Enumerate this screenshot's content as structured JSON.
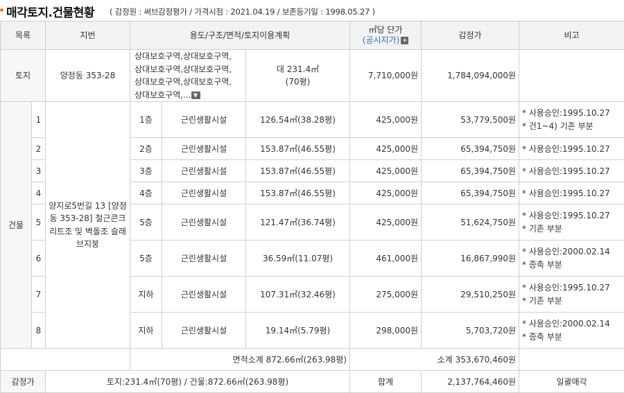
{
  "header": {
    "title": "매각토지.건물현황",
    "subtitle": "( 감정원 : 써브감정평가 / 가격시점 : 2021.04.19 / 보존등기일 : 1998.05.27 )"
  },
  "columns": {
    "category": "목록",
    "lot": "지번",
    "usage": "용도/구조/면적/토지이용계획",
    "unit_price": "㎡당 단가",
    "unit_price_link": "(공시지가)",
    "appraisal": "감정가",
    "remarks": "비고"
  },
  "land": {
    "label": "토지",
    "lot": "양정동 353-28",
    "zoning_lines": [
      "상대보호구역,상대보호구역,",
      "상대보호구역,상대보호구역,",
      "상대보호구역,상대보호구역,",
      "상대보호구역,..."
    ],
    "area": "대 231.4㎡",
    "area_pyeong": "(70평)",
    "unit_price": "7,710,000원",
    "appraisal": "1,784,094,000원"
  },
  "building": {
    "label": "건물",
    "address": "양지로5번길 13 [양정동 353-28] 철근콘크리트조 및 벽돌조 슬래브지붕",
    "rows": [
      {
        "no": "1",
        "floor": "1층",
        "use": "근린생활시설",
        "area": "126.54㎡(38.28평)",
        "unit_price": "425,000원",
        "appraisal": "53,779,500원",
        "notes": [
          "* 사용승인:1995.10.27",
          "* 건1~4) 기존 부분"
        ]
      },
      {
        "no": "2",
        "floor": "2층",
        "use": "근린생활시설",
        "area": "153.87㎡(46.55평)",
        "unit_price": "425,000원",
        "appraisal": "65,394,750원",
        "notes": [
          "* 사용승인:1995.10.27"
        ]
      },
      {
        "no": "3",
        "floor": "3층",
        "use": "근린생활시설",
        "area": "153.87㎡(46.55평)",
        "unit_price": "425,000원",
        "appraisal": "65,394,750원",
        "notes": [
          "* 사용승인:1995.10.27"
        ]
      },
      {
        "no": "4",
        "floor": "4층",
        "use": "근린생활시설",
        "area": "153.87㎡(46.55평)",
        "unit_price": "425,000원",
        "appraisal": "65,394,750원",
        "notes": [
          "* 사용승인:1995.10.27"
        ]
      },
      {
        "no": "5",
        "floor": "5층",
        "use": "근린생활시설",
        "area": "121.47㎡(36.74평)",
        "unit_price": "425,000원",
        "appraisal": "51,624,750원",
        "notes": [
          "* 사용승인:1995.10.27",
          "* 기존 부분"
        ]
      },
      {
        "no": "6",
        "floor": "5층",
        "use": "근린생활시설",
        "area": "36.59㎡(11.07평)",
        "unit_price": "461,000원",
        "appraisal": "16,867,990원",
        "notes": [
          "* 사용승인:2000.02.14",
          "* 증축 부분"
        ]
      },
      {
        "no": "7",
        "floor": "지하",
        "use": "근린생활시설",
        "area": "107.31㎡(32.46평)",
        "unit_price": "275,000원",
        "appraisal": "29,510,250원",
        "notes": [
          "* 사용승인:1995.10.27",
          "* 기존 부분"
        ]
      },
      {
        "no": "8",
        "floor": "지하",
        "use": "근린생활시설",
        "area": "19.14㎡(5.79평)",
        "unit_price": "298,000원",
        "appraisal": "5,703,720원",
        "notes": [
          "* 사용승인:2000.02.14",
          "* 증축 부분"
        ]
      }
    ],
    "area_subtotal": "면적소계 872.66㎡(263.98평)",
    "subtotal": "소계 353,670,460원"
  },
  "total": {
    "label": "감정가",
    "summary": "토지:231.4㎡(70평) / 건물:872.66㎡(263.98평)",
    "sum_label": "합계",
    "sum": "2,137,764,460원",
    "remark": "일괄매각"
  },
  "icons": {
    "expand": "plus-box-icon",
    "more": "chevron-down-box-icon"
  },
  "colors": {
    "accent_dot": "#f07a1c",
    "link": "#2a6fb8",
    "header_bg": "#f2f2f2"
  }
}
